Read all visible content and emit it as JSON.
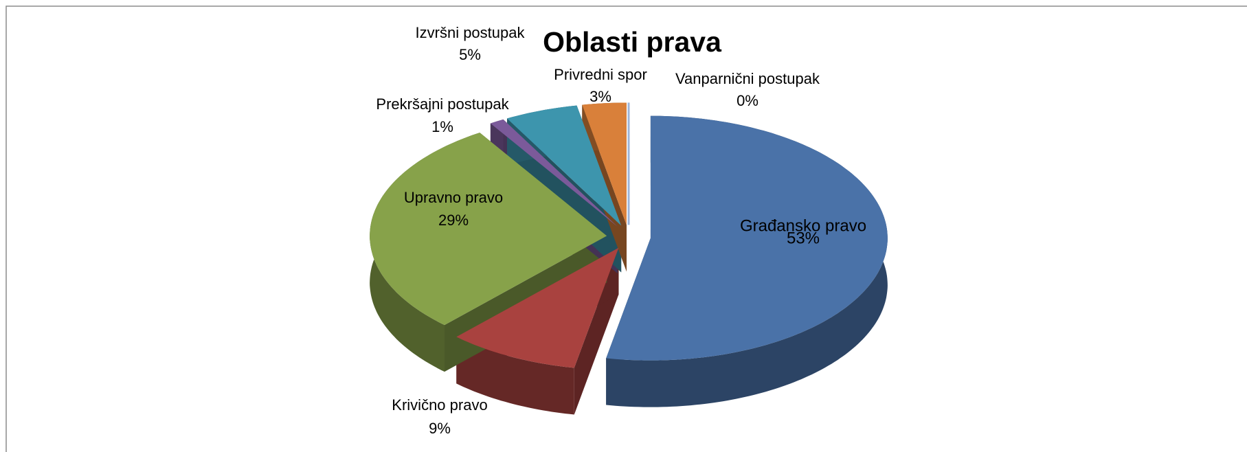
{
  "chart_data": {
    "type": "pie3d",
    "title": "Oblasti prava",
    "categories": [
      "Građansko pravo",
      "Krivično pravo",
      "Upravno pravo",
      "Prekršajni postupak",
      "Izvršni postupak",
      "Privredni spor",
      "Vanparnični postupak"
    ],
    "values": [
      53,
      9,
      29,
      1,
      5,
      3,
      0
    ],
    "value_labels": [
      "53%",
      "9%",
      "29%",
      "1%",
      "5%",
      "3%",
      "0%"
    ],
    "colors": [
      "#4a72a8",
      "#a9423f",
      "#87a24a",
      "#7b5a9a",
      "#3d95ad",
      "#d9803a",
      "#9db5da"
    ]
  }
}
